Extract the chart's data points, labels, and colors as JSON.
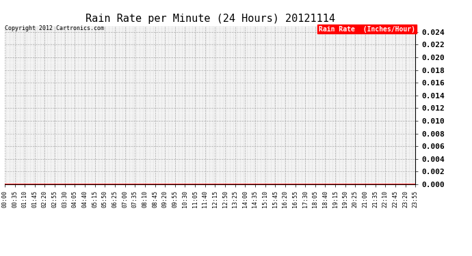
{
  "title": "Rain Rate per Minute (24 Hours) 20121114",
  "copyright_text": "Copyright 2012 Cartronics.com",
  "legend_label": "Rain Rate  (Inches/Hour)",
  "legend_bg": "#ff0000",
  "legend_text_color": "#ffffff",
  "line_color": "#ff0000",
  "ylim": [
    0.0,
    0.025
  ],
  "yticks": [
    0.0,
    0.002,
    0.004,
    0.006,
    0.008,
    0.01,
    0.012,
    0.014,
    0.016,
    0.018,
    0.02,
    0.022,
    0.024
  ],
  "xtick_labels": [
    "00:00",
    "00:35",
    "01:10",
    "01:45",
    "02:20",
    "02:55",
    "03:30",
    "04:05",
    "04:40",
    "05:15",
    "05:50",
    "06:25",
    "07:00",
    "07:35",
    "08:10",
    "08:45",
    "09:20",
    "09:55",
    "10:30",
    "11:05",
    "11:40",
    "12:15",
    "12:50",
    "13:25",
    "14:00",
    "14:35",
    "15:10",
    "15:45",
    "16:20",
    "16:55",
    "17:30",
    "18:05",
    "18:40",
    "19:15",
    "19:50",
    "20:25",
    "21:00",
    "21:35",
    "22:10",
    "22:45",
    "23:20",
    "23:55"
  ],
  "num_points": 1440,
  "background_color": "#ffffff",
  "grid_color": "#aaaaaa",
  "title_fontsize": 11,
  "tick_fontsize": 6,
  "ytick_fontsize": 8,
  "copyright_fontsize": 6,
  "legend_fontsize": 7
}
